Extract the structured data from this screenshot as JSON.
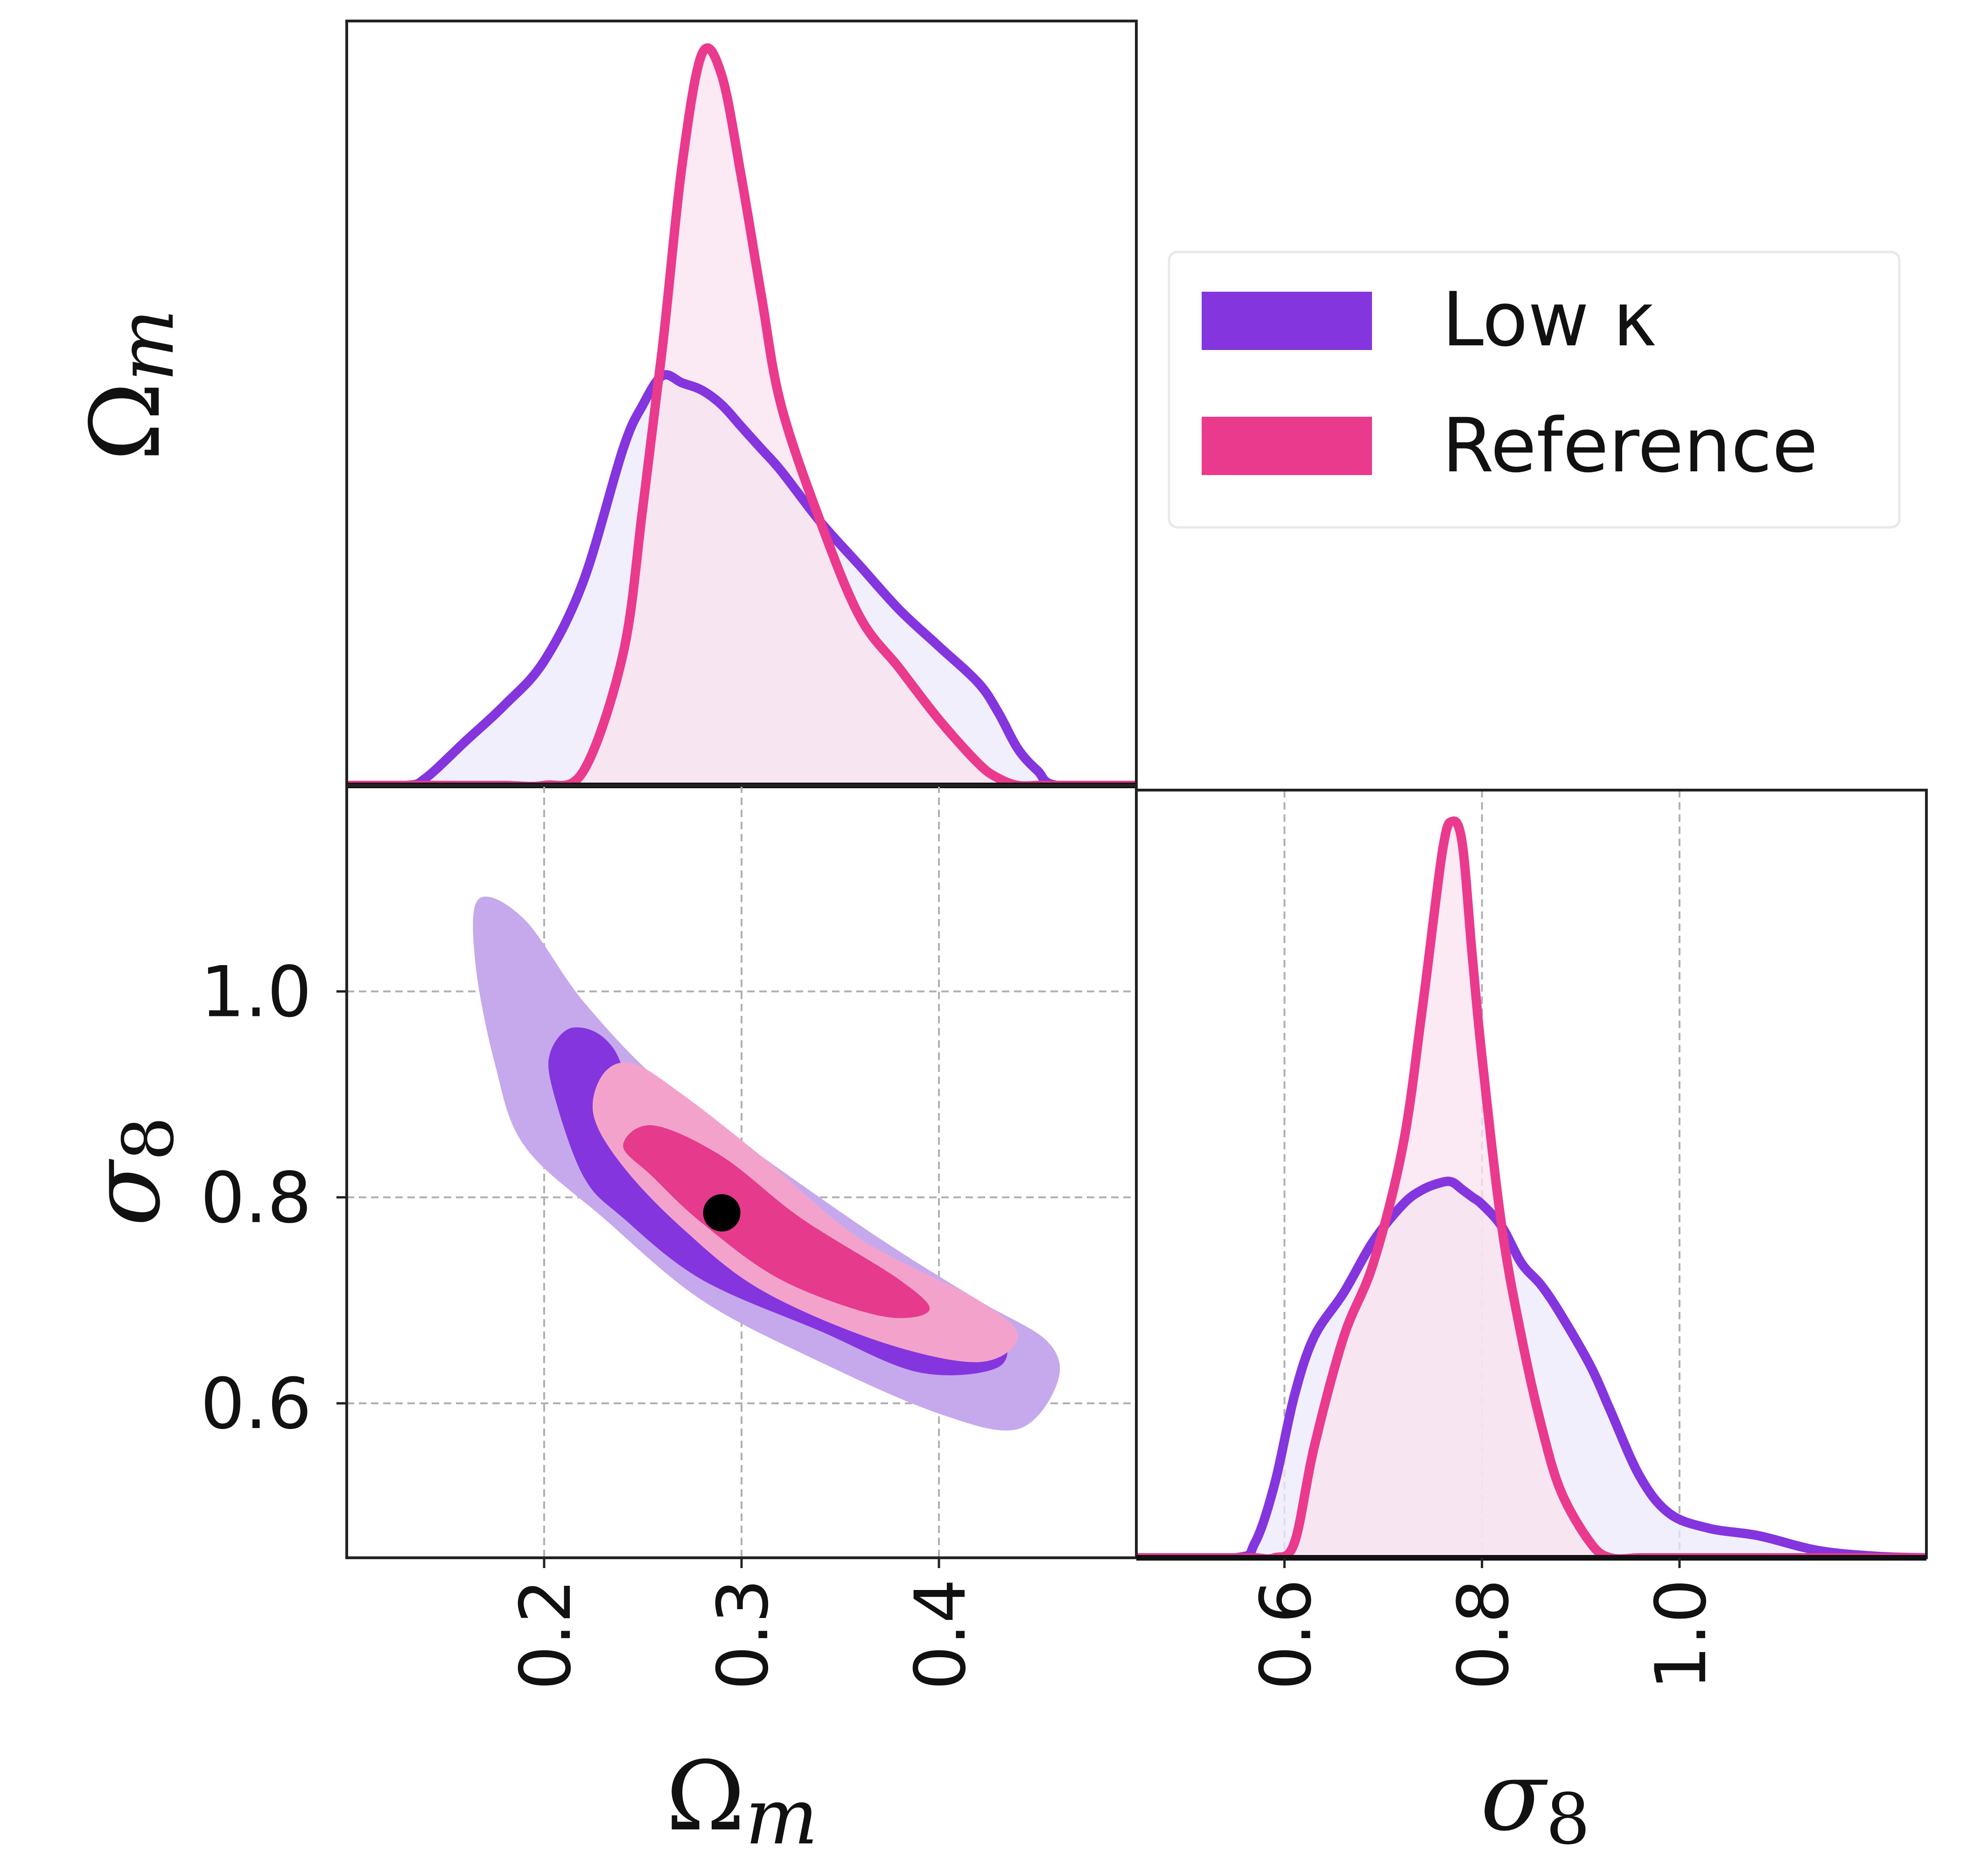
{
  "colors": {
    "low_kappa": "#8435DE",
    "reference": "#EA3A8D",
    "low_kappa_fill": "#EEEAFB",
    "reference_fill": "#F9E2EF",
    "overlap_fill": "#EBD6EE",
    "low_kappa_contour_outer": "#C6A9EC",
    "low_kappa_contour_inner": "#8435DE",
    "reference_contour_outer": "#F3A3CB",
    "reference_contour_inner": "#E63A8D",
    "true_point": "#000000",
    "grid": "#b0b0b0"
  },
  "chart_data": [
    {
      "type": "line",
      "name": "omega-m-marginal",
      "panel_label": "Ω_m",
      "xlim": [
        0.1,
        0.5
      ],
      "ylim": [
        0,
        1.0
      ],
      "x": [
        0.1,
        0.13,
        0.14,
        0.16,
        0.18,
        0.2,
        0.22,
        0.24,
        0.25,
        0.26,
        0.27,
        0.28,
        0.29,
        0.3,
        0.31,
        0.32,
        0.34,
        0.36,
        0.38,
        0.4,
        0.42,
        0.43,
        0.44,
        0.45,
        0.46,
        0.5
      ],
      "series": [
        {
          "name": "Low κ",
          "values": [
            0,
            0,
            0.01,
            0.06,
            0.11,
            0.17,
            0.28,
            0.46,
            0.52,
            0.56,
            0.55,
            0.54,
            0.52,
            0.49,
            0.46,
            0.43,
            0.36,
            0.3,
            0.24,
            0.19,
            0.14,
            0.1,
            0.05,
            0.02,
            0,
            0
          ]
        },
        {
          "name": "Reference",
          "values": [
            0,
            0,
            0,
            0,
            0,
            0,
            0.02,
            0.18,
            0.38,
            0.6,
            0.85,
            1.0,
            0.97,
            0.83,
            0.67,
            0.52,
            0.36,
            0.23,
            0.16,
            0.09,
            0.03,
            0.01,
            0,
            0,
            0,
            0
          ]
        }
      ]
    },
    {
      "type": "scatter",
      "name": "omega-m-sigma8-joint",
      "xlabel": "Ω_m",
      "ylabel": "σ_8",
      "xlim": [
        0.1,
        0.5
      ],
      "ylim": [
        0.45,
        1.2
      ],
      "xticks": [
        "0.2",
        "0.3",
        "0.4"
      ],
      "yticks": [
        "0.6",
        "0.8",
        "1.0"
      ],
      "xtick_values": [
        0.2,
        0.3,
        0.4
      ],
      "ytick_values": [
        0.6,
        0.8,
        1.0
      ],
      "grid": true,
      "contours": [
        {
          "name": "Low κ 95%",
          "points": [
            [
              0.167,
              1.09
            ],
            [
              0.19,
              1.07
            ],
            [
              0.22,
              0.99
            ],
            [
              0.26,
              0.91
            ],
            [
              0.31,
              0.84
            ],
            [
              0.37,
              0.76
            ],
            [
              0.42,
              0.7
            ],
            [
              0.455,
              0.66
            ],
            [
              0.46,
              0.62
            ],
            [
              0.44,
              0.575
            ],
            [
              0.4,
              0.59
            ],
            [
              0.34,
              0.64
            ],
            [
              0.28,
              0.7
            ],
            [
              0.23,
              0.78
            ],
            [
              0.19,
              0.85
            ],
            [
              0.175,
              0.93
            ],
            [
              0.165,
              1.03
            ]
          ]
        },
        {
          "name": "Low κ 68%",
          "points": [
            [
              0.215,
              0.965
            ],
            [
              0.235,
              0.945
            ],
            [
              0.255,
              0.86
            ],
            [
              0.305,
              0.8
            ],
            [
              0.36,
              0.74
            ],
            [
              0.395,
              0.7
            ],
            [
              0.43,
              0.67
            ],
            [
              0.43,
              0.635
            ],
            [
              0.39,
              0.63
            ],
            [
              0.34,
              0.67
            ],
            [
              0.28,
              0.72
            ],
            [
              0.24,
              0.78
            ],
            [
              0.22,
              0.82
            ],
            [
              0.205,
              0.9
            ],
            [
              0.203,
              0.94
            ]
          ]
        },
        {
          "name": "Reference 95%",
          "points": [
            [
              0.245,
              0.93
            ],
            [
              0.27,
              0.9
            ],
            [
              0.31,
              0.84
            ],
            [
              0.36,
              0.76
            ],
            [
              0.42,
              0.7
            ],
            [
              0.44,
              0.665
            ],
            [
              0.42,
              0.64
            ],
            [
              0.37,
              0.66
            ],
            [
              0.31,
              0.71
            ],
            [
              0.27,
              0.77
            ],
            [
              0.24,
              0.83
            ],
            [
              0.225,
              0.88
            ],
            [
              0.23,
              0.92
            ]
          ]
        },
        {
          "name": "Reference 68%",
          "points": [
            [
              0.255,
              0.87
            ],
            [
              0.29,
              0.84
            ],
            [
              0.33,
              0.78
            ],
            [
              0.38,
              0.72
            ],
            [
              0.395,
              0.69
            ],
            [
              0.37,
              0.685
            ],
            [
              0.32,
              0.72
            ],
            [
              0.28,
              0.775
            ],
            [
              0.255,
              0.82
            ],
            [
              0.24,
              0.85
            ]
          ]
        }
      ],
      "true_point": [
        0.29,
        0.785
      ]
    },
    {
      "type": "line",
      "name": "sigma8-marginal",
      "xlabel": "σ_8",
      "xlim": [
        0.45,
        1.25
      ],
      "ylim": [
        0,
        1.0
      ],
      "xticks": [
        "0.6",
        "0.8",
        "1.0"
      ],
      "xtick_values": [
        0.6,
        0.8,
        1.0
      ],
      "grid": true,
      "x": [
        0.45,
        0.55,
        0.57,
        0.59,
        0.61,
        0.63,
        0.66,
        0.69,
        0.72,
        0.74,
        0.76,
        0.77,
        0.78,
        0.79,
        0.8,
        0.82,
        0.84,
        0.86,
        0.88,
        0.91,
        0.93,
        0.96,
        0.99,
        1.03,
        1.08,
        1.14,
        1.2,
        1.25
      ],
      "series": [
        {
          "name": "Low κ",
          "values": [
            0,
            0,
            0.02,
            0.1,
            0.22,
            0.3,
            0.36,
            0.43,
            0.48,
            0.5,
            0.51,
            0.51,
            0.5,
            0.49,
            0.48,
            0.45,
            0.4,
            0.37,
            0.33,
            0.26,
            0.2,
            0.11,
            0.06,
            0.04,
            0.03,
            0.01,
            0.002,
            0
          ]
        },
        {
          "name": "Reference",
          "values": [
            0,
            0,
            0,
            0,
            0.02,
            0.15,
            0.3,
            0.4,
            0.56,
            0.75,
            0.96,
            1.0,
            0.97,
            0.82,
            0.68,
            0.45,
            0.3,
            0.18,
            0.09,
            0.02,
            0,
            0,
            0,
            0,
            0,
            0,
            0,
            0
          ]
        }
      ]
    }
  ],
  "legend": {
    "entries": [
      {
        "label": "Low κ",
        "color_key": "low_kappa"
      },
      {
        "label": "Reference",
        "color_key": "reference"
      }
    ]
  }
}
